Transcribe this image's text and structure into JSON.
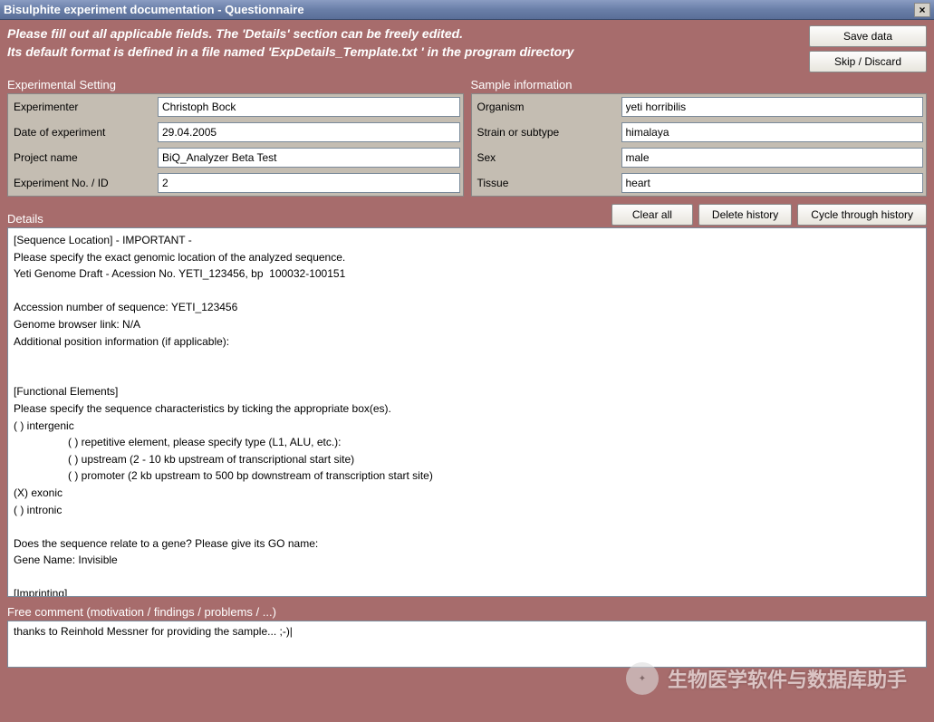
{
  "window": {
    "title": "Bisulphite experiment documentation - Questionnaire",
    "close_label": "×"
  },
  "instructions": {
    "line1": "Please fill out all applicable fields. The 'Details' section can be freely edited.",
    "line2": "Its default format is defined in a file named 'ExpDetails_Template.txt ' in the program directory"
  },
  "buttons": {
    "save": "Save data",
    "skip": "Skip / Discard",
    "clear_all": "Clear all",
    "delete_history": "Delete history",
    "cycle_history": "Cycle through history"
  },
  "experimental": {
    "section_title": "Experimental Setting",
    "fields": [
      {
        "label": "Experimenter",
        "value": "Christoph Bock"
      },
      {
        "label": "Date of experiment",
        "value": "29.04.2005"
      },
      {
        "label": "Project name",
        "value": "BiQ_Analyzer Beta Test"
      },
      {
        "label": "Experiment No. / ID",
        "value": "2"
      }
    ]
  },
  "sample": {
    "section_title": "Sample information",
    "fields": [
      {
        "label": "Organism",
        "value": "yeti horribilis"
      },
      {
        "label": "Strain or subtype",
        "value": "himalaya"
      },
      {
        "label": "Sex",
        "value": "male"
      },
      {
        "label": "Tissue",
        "value": "heart"
      }
    ]
  },
  "details": {
    "title": "Details",
    "text": "[Sequence Location] - IMPORTANT -\nPlease specify the exact genomic location of the analyzed sequence.\nYeti Genome Draft - Acession No. YETI_123456, bp  100032-100151\n\nAccession number of sequence: YETI_123456\nGenome browser link: N/A\nAdditional position information (if applicable):\n\n\n[Functional Elements]\nPlease specify the sequence characteristics by ticking the appropriate box(es).\n( ) intergenic\n                  ( ) repetitive element, please specify type (L1, ALU, etc.):\n                  ( ) upstream (2 - 10 kb upstream of transcriptional start site)\n                  ( ) promoter (2 kb upstream to 500 bp downstream of transcription start site)\n(X) exonic\n( ) intronic\n\nDoes the sequence relate to a gene? Please give its GO name:\nGene Name: Invisible\n\n[Imprinting]"
  },
  "comment": {
    "title": "Free comment (motivation / findings / problems / ...)",
    "text": "thanks to Reinhold Messner for providing the sample... ;-)|"
  },
  "watermark": {
    "text": "生物医学软件与数据库助手"
  },
  "colors": {
    "background": "#a76c6c",
    "titlebar_start": "#8a9cc2",
    "titlebar_end": "#5a6e98",
    "panel": "#c4bdb2",
    "input_bg": "#ffffff",
    "text_light": "#ffffff"
  }
}
